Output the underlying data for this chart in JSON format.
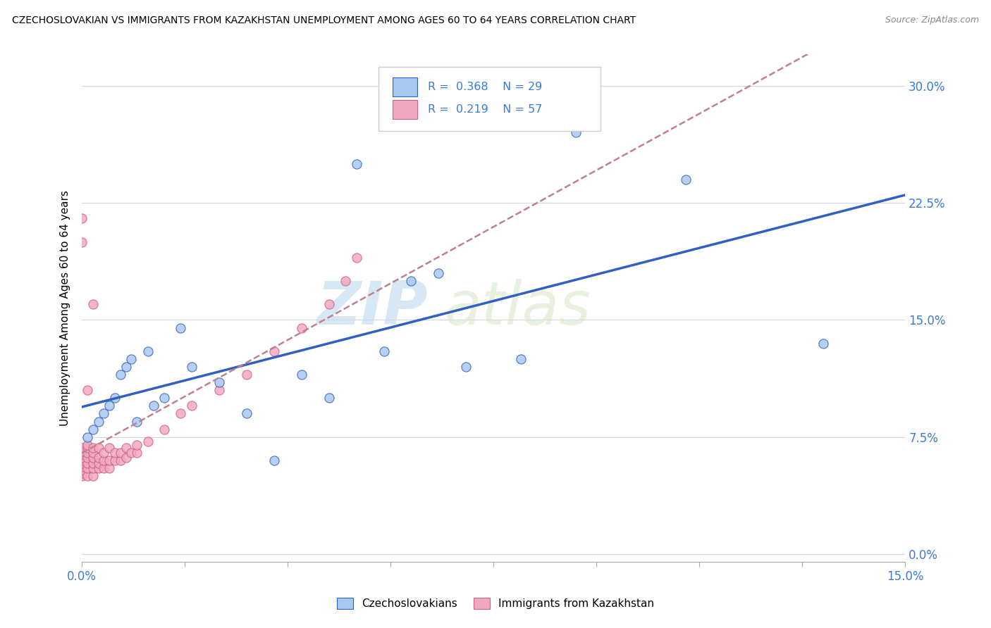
{
  "title": "CZECHOSLOVAKIAN VS IMMIGRANTS FROM KAZAKHSTAN UNEMPLOYMENT AMONG AGES 60 TO 64 YEARS CORRELATION CHART",
  "source": "Source: ZipAtlas.com",
  "ylabel_label": "Unemployment Among Ages 60 to 64 years",
  "xlim": [
    0.0,
    0.15
  ],
  "ylim": [
    -0.005,
    0.32
  ],
  "color_czech": "#a8c8f0",
  "color_kazakh": "#f0a8c0",
  "color_trend_czech": "#3060c0",
  "color_trend_kazakh": "#c08090",
  "background_color": "#ffffff",
  "watermark": "ZIPatlas",
  "legend_labels": [
    "Czechoslovakians",
    "Immigrants from Kazakhstan"
  ],
  "czech_x": [
    0.001,
    0.002,
    0.003,
    0.004,
    0.005,
    0.006,
    0.007,
    0.008,
    0.009,
    0.01,
    0.012,
    0.013,
    0.015,
    0.018,
    0.02,
    0.025,
    0.03,
    0.035,
    0.04,
    0.045,
    0.05,
    0.055,
    0.06,
    0.065,
    0.07,
    0.08,
    0.09,
    0.11,
    0.135
  ],
  "czech_y": [
    0.075,
    0.08,
    0.085,
    0.09,
    0.095,
    0.1,
    0.115,
    0.12,
    0.125,
    0.085,
    0.13,
    0.095,
    0.1,
    0.145,
    0.12,
    0.11,
    0.09,
    0.06,
    0.115,
    0.1,
    0.25,
    0.13,
    0.175,
    0.18,
    0.12,
    0.125,
    0.27,
    0.24,
    0.135
  ],
  "kazakh_x": [
    0.0,
    0.0,
    0.0,
    0.0,
    0.0,
    0.0,
    0.0,
    0.0,
    0.0,
    0.0,
    0.001,
    0.001,
    0.001,
    0.001,
    0.001,
    0.001,
    0.001,
    0.002,
    0.002,
    0.002,
    0.002,
    0.002,
    0.002,
    0.003,
    0.003,
    0.003,
    0.003,
    0.004,
    0.004,
    0.004,
    0.005,
    0.005,
    0.005,
    0.006,
    0.006,
    0.007,
    0.007,
    0.008,
    0.008,
    0.009,
    0.01,
    0.01,
    0.012,
    0.015,
    0.018,
    0.02,
    0.025,
    0.03,
    0.035,
    0.04,
    0.045,
    0.048,
    0.05,
    0.0,
    0.0,
    0.001,
    0.002
  ],
  "kazakh_y": [
    0.05,
    0.052,
    0.054,
    0.056,
    0.058,
    0.06,
    0.062,
    0.064,
    0.066,
    0.068,
    0.05,
    0.055,
    0.058,
    0.062,
    0.065,
    0.068,
    0.07,
    0.05,
    0.055,
    0.058,
    0.062,
    0.065,
    0.068,
    0.055,
    0.058,
    0.062,
    0.068,
    0.055,
    0.06,
    0.065,
    0.055,
    0.06,
    0.068,
    0.06,
    0.065,
    0.06,
    0.065,
    0.062,
    0.068,
    0.065,
    0.065,
    0.07,
    0.072,
    0.08,
    0.09,
    0.095,
    0.105,
    0.115,
    0.13,
    0.145,
    0.16,
    0.175,
    0.19,
    0.2,
    0.215,
    0.105,
    0.16
  ]
}
